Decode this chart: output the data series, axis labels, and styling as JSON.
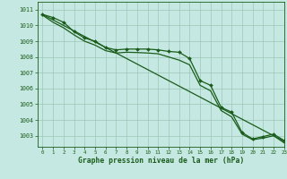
{
  "title": "Graphe pression niveau de la mer (hPa)",
  "background_color": "#c6e8e2",
  "grid_color": "#9cc8b8",
  "line_color": "#1a5c1a",
  "marker_color": "#1a5c1a",
  "xlim": [
    -0.5,
    23
  ],
  "ylim": [
    1002.3,
    1011.5
  ],
  "yticks": [
    1003,
    1004,
    1005,
    1006,
    1007,
    1008,
    1009,
    1010,
    1011
  ],
  "xticks": [
    0,
    1,
    2,
    3,
    4,
    5,
    6,
    7,
    8,
    9,
    10,
    11,
    12,
    13,
    14,
    15,
    16,
    17,
    18,
    19,
    20,
    21,
    22,
    23
  ],
  "series_marker": {
    "x": [
      0,
      1,
      2,
      3,
      4,
      5,
      6,
      7,
      8,
      9,
      10,
      11,
      12,
      13,
      14,
      15,
      16,
      17,
      18,
      19,
      20,
      21,
      22,
      23
    ],
    "y": [
      1010.7,
      1010.5,
      1010.2,
      1009.6,
      1009.2,
      1009.0,
      1008.6,
      1008.45,
      1008.5,
      1008.5,
      1008.5,
      1008.45,
      1008.35,
      1008.3,
      1007.9,
      1006.5,
      1006.2,
      1004.8,
      1004.5,
      1003.2,
      1002.8,
      1002.95,
      1003.1,
      1002.7
    ]
  },
  "series_smooth": {
    "x": [
      0,
      1,
      2,
      3,
      4,
      5,
      6,
      7,
      8,
      9,
      10,
      11,
      12,
      13,
      14,
      15,
      16,
      17,
      18,
      19,
      20,
      21,
      22,
      23
    ],
    "y": [
      1010.65,
      1010.2,
      1009.85,
      1009.4,
      1009.0,
      1008.75,
      1008.4,
      1008.25,
      1008.3,
      1008.28,
      1008.25,
      1008.2,
      1008.0,
      1007.8,
      1007.5,
      1006.2,
      1005.85,
      1004.6,
      1004.2,
      1003.1,
      1002.75,
      1002.85,
      1003.0,
      1002.55
    ]
  },
  "series_linear": {
    "x": [
      0,
      23
    ],
    "y": [
      1010.7,
      1002.65
    ]
  }
}
